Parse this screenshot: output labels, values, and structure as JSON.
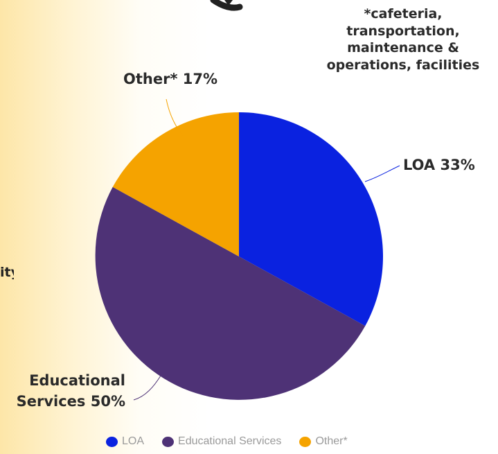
{
  "colors": {
    "loa": "#0a22e0",
    "educational": "#4e3276",
    "other": "#f5a300"
  },
  "cropped_left_text": "ity",
  "footnote": {
    "lines": [
      "*cafeteria,",
      "transportation,",
      "maintenance &",
      "operations, facilities"
    ]
  },
  "labels": {
    "other": "Other* 17%",
    "loa": "LOA 33%",
    "educational_line1": "Educational",
    "educational_line2": "Services 50%"
  },
  "chart_data": {
    "type": "pie",
    "slices": [
      {
        "name": "LOA",
        "value": 33,
        "color": "#0a22e0"
      },
      {
        "name": "Educational Services",
        "value": 50,
        "color": "#4e3276"
      },
      {
        "name": "Other*",
        "value": 17,
        "color": "#f5a300"
      }
    ],
    "start_angle_deg": 0,
    "direction": "clockwise",
    "legend_position": "bottom"
  },
  "legend": {
    "items": [
      {
        "label": "LOA",
        "color": "#0a22e0"
      },
      {
        "label": "Educational Services",
        "color": "#4e3276"
      },
      {
        "label": "Other*",
        "color": "#f5a300"
      }
    ]
  }
}
